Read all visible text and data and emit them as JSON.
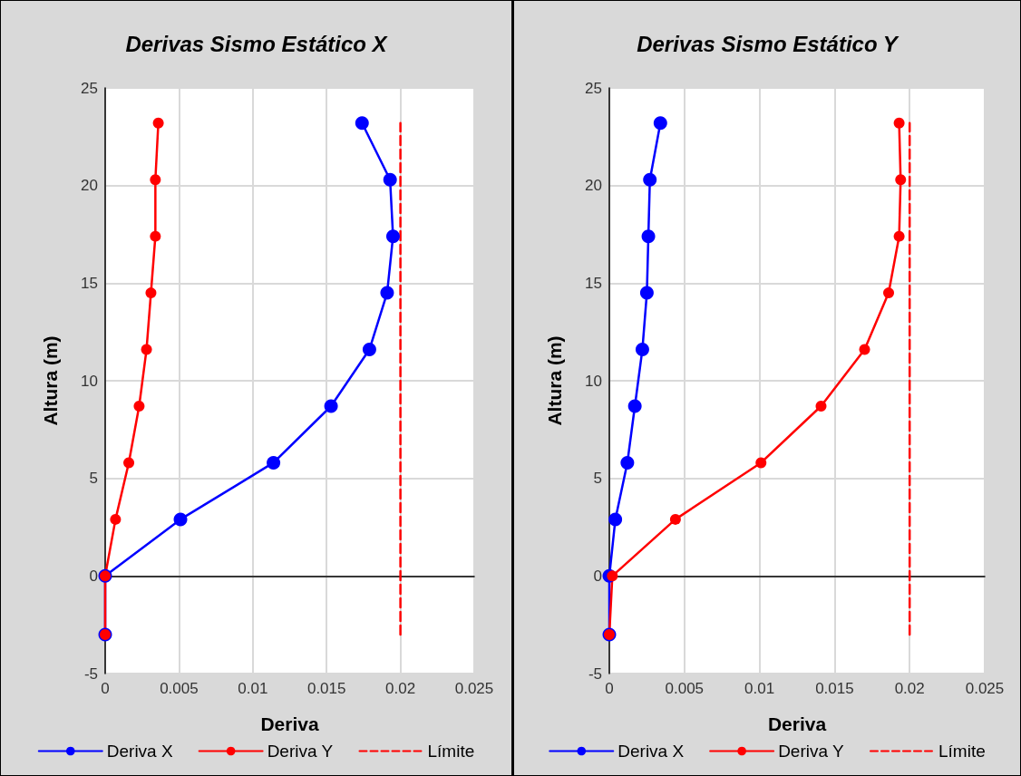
{
  "chart_data": [
    {
      "type": "line",
      "title": "Derivas Sismo Estático X",
      "xlabel": "Deriva",
      "ylabel": "Altura (m)",
      "xlim": [
        0,
        0.025
      ],
      "xticks": [
        0,
        0.005,
        0.01,
        0.015,
        0.02,
        0.025
      ],
      "ylim": [
        -5,
        25
      ],
      "yticks": [
        -5,
        0,
        5,
        10,
        15,
        20,
        25
      ],
      "grid": true,
      "legend": "bottom",
      "marker": "circle",
      "line_style": "solid",
      "series": [
        {
          "name": "Deriva X",
          "color": "#0000ff",
          "x": [
            0,
            0,
            0.0051,
            0.0114,
            0.0153,
            0.0179,
            0.0191,
            0.0195,
            0.0193,
            0.0174
          ],
          "values": [
            -3,
            0,
            2.9,
            5.8,
            8.7,
            11.6,
            14.5,
            17.4,
            20.3,
            23.2
          ]
        },
        {
          "name": "Deriva Y",
          "color": "#ff0000",
          "x": [
            0,
            0,
            0.0007,
            0.0016,
            0.0023,
            0.0028,
            0.0031,
            0.0034,
            0.0034,
            0.0036
          ],
          "values": [
            -3,
            0,
            2.9,
            5.8,
            8.7,
            11.6,
            14.5,
            17.4,
            20.3,
            23.2
          ]
        },
        {
          "name": "Límite",
          "color": "#ff0000",
          "marker": "none",
          "line_style": "dashed",
          "x": [
            0.02,
            0.02
          ],
          "values": [
            -3,
            23.2
          ]
        }
      ]
    },
    {
      "type": "line",
      "title": "Derivas Sismo Estático Y",
      "xlabel": "Deriva",
      "ylabel": "Altura (m)",
      "xlim": [
        0,
        0.025
      ],
      "xticks": [
        0,
        0.005,
        0.01,
        0.015,
        0.02,
        0.025
      ],
      "ylim": [
        -5,
        25
      ],
      "yticks": [
        -5,
        0,
        5,
        10,
        15,
        20,
        25
      ],
      "grid": true,
      "legend": "bottom",
      "marker": "circle",
      "line_style": "solid",
      "series": [
        {
          "name": "Deriva X",
          "color": "#0000ff",
          "x": [
            0,
            0,
            0.0004,
            0.0012,
            0.0017,
            0.0022,
            0.0025,
            0.0026,
            0.0027,
            0.0034
          ],
          "values": [
            -3,
            0,
            2.9,
            5.8,
            8.7,
            11.6,
            14.5,
            17.4,
            20.3,
            23.2
          ]
        },
        {
          "name": "Deriva Y",
          "color": "#ff0000",
          "x": [
            0,
            0.0002,
            0.0044,
            0.0101,
            0.0141,
            0.017,
            0.0186,
            0.0193,
            0.0194,
            0.0193
          ],
          "values": [
            -3,
            0,
            2.9,
            5.8,
            8.7,
            11.6,
            14.5,
            17.4,
            20.3,
            23.2
          ]
        },
        {
          "name": "Límite",
          "color": "#ff0000",
          "marker": "none",
          "line_style": "dashed",
          "x": [
            0.02,
            0.02
          ],
          "values": [
            -3,
            23.2
          ]
        }
      ]
    }
  ]
}
